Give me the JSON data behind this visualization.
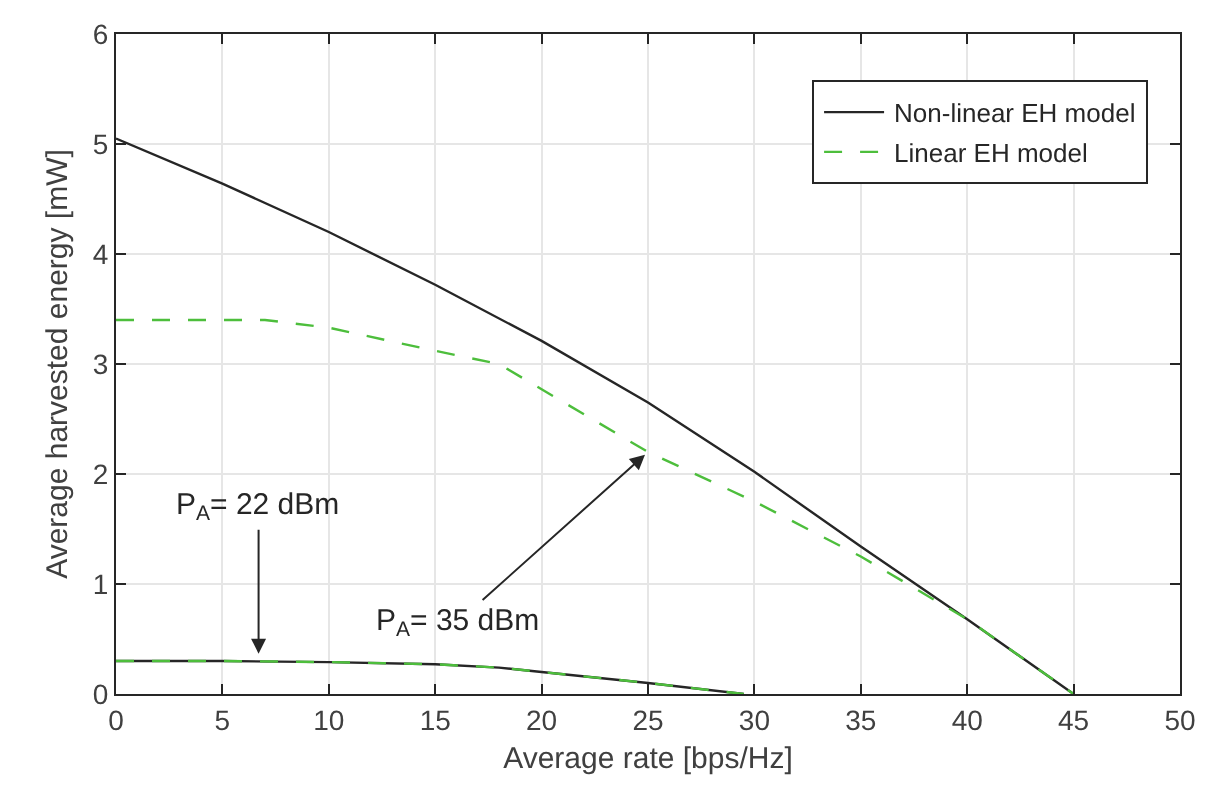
{
  "chart_data": {
    "type": "line",
    "xlabel": "Average rate [bps/Hz]",
    "ylabel": "Average harvested energy [mW]",
    "xlim": [
      0,
      50
    ],
    "xticks": [
      0,
      5,
      10,
      15,
      20,
      25,
      30,
      35,
      40,
      45,
      50
    ],
    "ylim": [
      0,
      6
    ],
    "yticks": [
      0,
      1,
      2,
      3,
      4,
      5,
      6
    ],
    "grid": true,
    "legend": "top right",
    "marker": "none",
    "series": [
      {
        "name": "Non-linear EH model",
        "color": "#262626",
        "line_style": "solid",
        "x": [
          0,
          5,
          10,
          15,
          20,
          25,
          30,
          35,
          40,
          45
        ],
        "values": [
          5.05,
          4.64,
          4.2,
          3.72,
          3.21,
          2.65,
          2.02,
          1.34,
          0.68,
          0
        ]
      },
      {
        "name": "Linear EH model",
        "color": "#4dbe3c",
        "line_style": "dashed",
        "x": [
          0,
          5,
          7,
          10,
          15,
          18,
          20,
          25,
          30,
          35,
          40,
          45
        ],
        "values": [
          3.4,
          3.4,
          3.4,
          3.33,
          3.12,
          3.0,
          2.77,
          2.2,
          1.75,
          1.25,
          0.68,
          0
        ]
      },
      {
        "color": "#262626",
        "line_style": "solid",
        "x": [
          0,
          5,
          10,
          15,
          18,
          20,
          25,
          29.5
        ],
        "values": [
          0.3,
          0.3,
          0.29,
          0.27,
          0.24,
          0.2,
          0.1,
          0
        ]
      },
      {
        "color": "#4dbe3c",
        "line_style": "dashed",
        "x": [
          0,
          5,
          10,
          15,
          18,
          20,
          25,
          29.5
        ],
        "values": [
          0.3,
          0.3,
          0.29,
          0.27,
          0.24,
          0.2,
          0.1,
          0
        ]
      }
    ],
    "annotations": [
      {
        "text": "P$_{A}$= 22 dBm",
        "x": 6.7,
        "y": 0.33
      },
      {
        "text": "P$_{A}$= 35 dBm",
        "x": 25,
        "y": 2.2
      }
    ]
  }
}
